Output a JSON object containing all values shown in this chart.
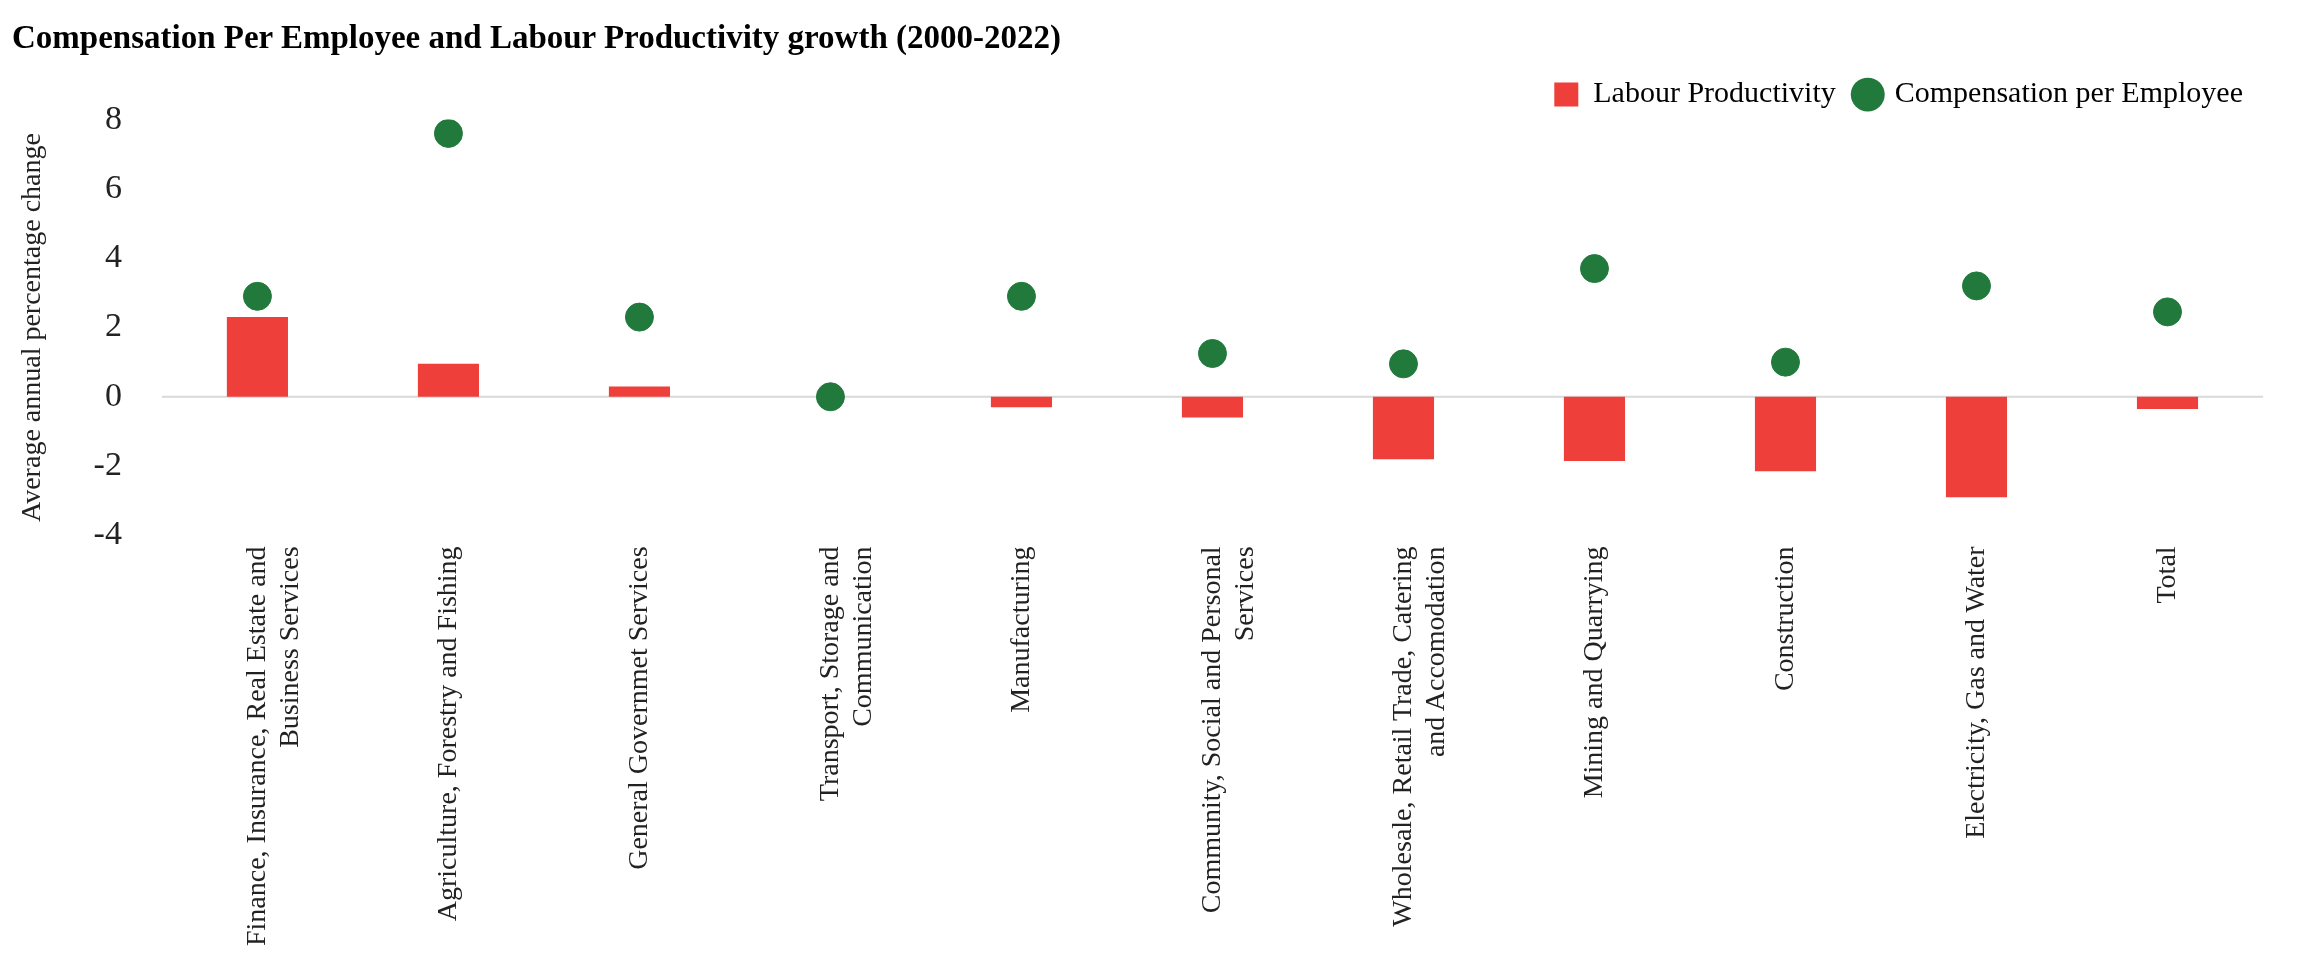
{
  "chart_data": {
    "type": "bar",
    "title": "Compensation Per Employee and Labour Productivity growth (2000-2022)",
    "ylabel": "Average annual percentage change",
    "categories": [
      "Finance, Insurance, Real Estate and Business Services",
      "Agriculture, Forestry and Fishing",
      "General Governmet Services",
      "Transport, Storage and Communication",
      "Manufacturing",
      "Community, Social and Personal Services",
      "Wholesale, Retail Trade, Catering and Accomodation",
      "Mining and Quarrying",
      "Construction",
      "Electricity, Gas and Water",
      "Total"
    ],
    "series": [
      {
        "name": "Labour Productivity",
        "color": "#ef3f3a",
        "values": [
          2.3,
          0.95,
          0.3,
          0.0,
          -0.3,
          -0.6,
          -1.8,
          -1.85,
          -2.15,
          -2.9,
          -0.35
        ]
      },
      {
        "name": "Compensation per Employee",
        "type": "scatter",
        "color": "#217a3c",
        "marker": "circle",
        "values": [
          2.9,
          7.6,
          2.3,
          0.0,
          2.9,
          1.25,
          0.95,
          3.7,
          1.0,
          3.2,
          2.45
        ]
      }
    ],
    "ylim": [
      -4,
      8
    ],
    "yticks": [
      -4,
      -2,
      0,
      2,
      4,
      6,
      8
    ],
    "grid": false,
    "legend": "top right",
    "ref_lines": [
      {
        "axis": "y",
        "value": 0,
        "color": "#d9d9d9"
      }
    ]
  }
}
